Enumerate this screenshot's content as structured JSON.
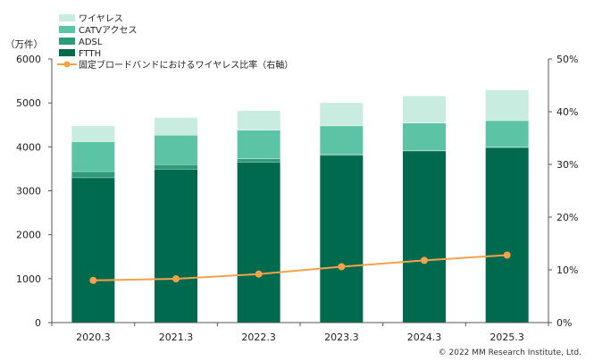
{
  "chart_data": {
    "type": "bar",
    "stacked": true,
    "categories": [
      "2020.3",
      "2021.3",
      "2022.3",
      "2023.3",
      "2024.3",
      "2025.3"
    ],
    "y_left_unit": "（万件）",
    "ylim_left": [
      0,
      6000
    ],
    "yticks_left": [
      "0",
      "1000",
      "2000",
      "3000",
      "4000",
      "5000",
      "6000"
    ],
    "ylim_right": [
      0,
      50
    ],
    "yticks_right": [
      "0%",
      "10%",
      "20%",
      "30%",
      "40%",
      "50%"
    ],
    "series": [
      {
        "name": "FTTH",
        "type": "bar",
        "color": "#006a4e",
        "values": [
          3300,
          3490,
          3660,
          3810,
          3910,
          3990
        ]
      },
      {
        "name": "ADSL",
        "type": "bar",
        "color": "#2e9c78",
        "values": [
          140,
          110,
          70,
          30,
          15,
          10
        ]
      },
      {
        "name": "CATVアクセス",
        "type": "bar",
        "color": "#5cc4a4",
        "values": [
          680,
          670,
          650,
          640,
          620,
          600
        ]
      },
      {
        "name": "ワイヤレス",
        "type": "bar",
        "color": "#c8ece0",
        "values": [
          360,
          400,
          450,
          530,
          620,
          700
        ]
      },
      {
        "name": "固定ブロードバンドにおけるワイヤレス比率（右軸）",
        "type": "line",
        "axis": "right",
        "color": "#f2a24a",
        "values": [
          8.0,
          8.3,
          9.2,
          10.6,
          11.8,
          12.8
        ]
      }
    ],
    "grid": false,
    "legend": "top-left"
  },
  "copyright": "© 2022 MM Research Institute, Ltd."
}
